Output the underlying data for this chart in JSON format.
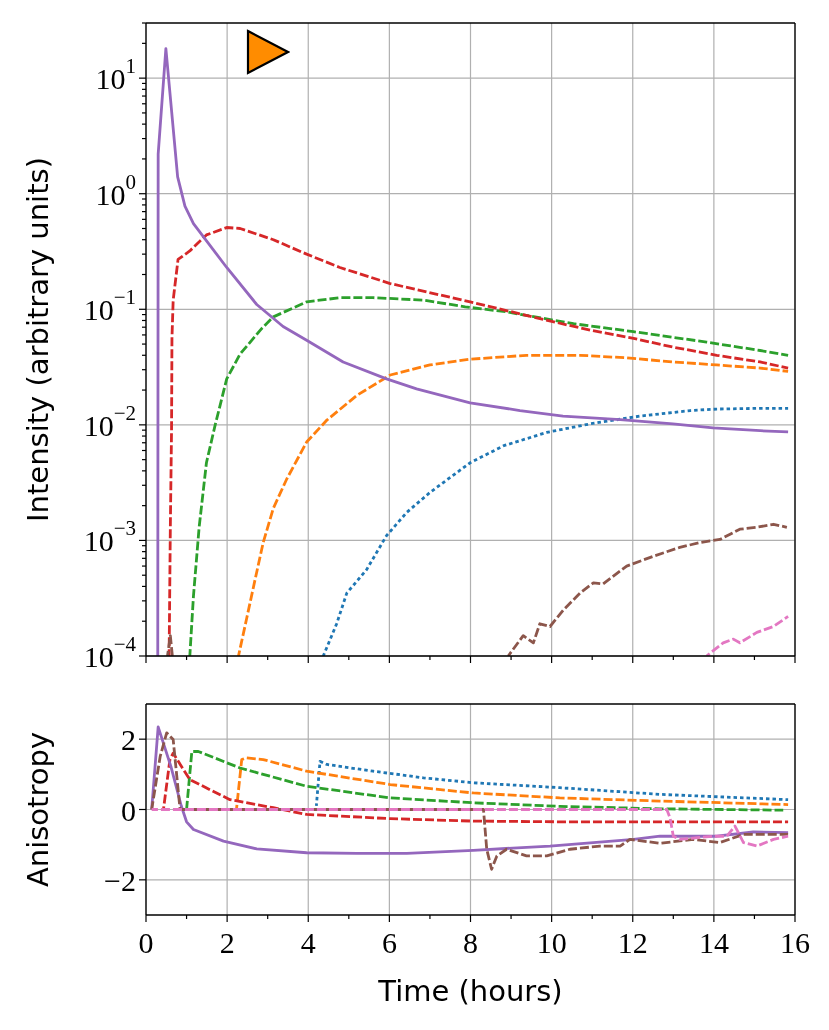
{
  "chart_data": [
    {
      "type": "line",
      "ylabel": "Intensity (arbitrary units)",
      "xlim": [
        0,
        16
      ],
      "xticks": [
        0,
        {
          "value": 1,
          "label": null
        },
        2,
        {
          "value": 3,
          "label": null
        },
        4,
        {
          "value": 5,
          "label": null
        },
        6,
        {
          "value": 7,
          "label": null
        },
        8,
        {
          "value": 9,
          "label": null
        },
        10,
        {
          "value": 11,
          "label": null
        },
        12,
        {
          "value": 13,
          "label": null
        },
        14,
        {
          "value": 15,
          "label": null
        },
        16
      ],
      "ylim": [
        0.0001,
        30
      ],
      "yticks": [
        {
          "value": 0.0001,
          "label": "10$^{−4}$"
        },
        {
          "value": 0.0002,
          "label": null
        },
        {
          "value": 0.0003,
          "label": null
        },
        {
          "value": 0.0004,
          "label": null
        },
        {
          "value": 0.0005,
          "label": null
        },
        {
          "value": 0.0006,
          "label": null
        },
        {
          "value": 0.0007,
          "label": null
        },
        {
          "value": 0.0008,
          "label": null
        },
        {
          "value": 0.0009,
          "label": null
        },
        {
          "value": 0.001,
          "label": "10$^{−3}$"
        },
        {
          "value": 0.002,
          "label": null
        },
        {
          "value": 0.003,
          "label": null
        },
        {
          "value": 0.004,
          "label": null
        },
        {
          "value": 0.005,
          "label": null
        },
        {
          "value": 0.006,
          "label": null
        },
        {
          "value": 0.007,
          "label": null
        },
        {
          "value": 0.008,
          "label": null
        },
        {
          "value": 0.009,
          "label": null
        },
        {
          "value": 0.01,
          "label": "10$^{−2}$"
        },
        {
          "value": 0.02,
          "label": null
        },
        {
          "value": 0.03,
          "label": null
        },
        {
          "value": 0.04,
          "label": null
        },
        {
          "value": 0.05,
          "label": null
        },
        {
          "value": 0.06,
          "label": null
        },
        {
          "value": 0.07,
          "label": null
        },
        {
          "value": 0.08,
          "label": null
        },
        {
          "value": 0.09,
          "label": null
        },
        {
          "value": 0.1,
          "label": "10$^{−1}$"
        },
        {
          "value": 0.2,
          "label": null
        },
        {
          "value": 0.3,
          "label": null
        },
        {
          "value": 0.4,
          "label": null
        },
        {
          "value": 0.5,
          "label": null
        },
        {
          "value": 0.6,
          "label": null
        },
        {
          "value": 0.7,
          "label": null
        },
        {
          "value": 0.8,
          "label": null
        },
        {
          "value": 0.9,
          "label": null
        },
        {
          "value": 1,
          "label": "10$^{0}$"
        },
        {
          "value": 2,
          "label": null
        },
        {
          "value": 3,
          "label": null
        },
        {
          "value": 4,
          "label": null
        },
        {
          "value": 5,
          "label": null
        },
        {
          "value": 6,
          "label": null
        },
        {
          "value": 7,
          "label": null
        },
        {
          "value": 8,
          "label": null
        },
        {
          "value": 9,
          "label": null
        },
        {
          "value": 10,
          "label": "10$^{1}$"
        },
        {
          "value": 20,
          "label": null
        },
        {
          "value": 30,
          "label": null
        }
      ],
      "log": "y",
      "grid": true,
      "tick_labels": "y",
      "series": [
        {
          "color": "#1f77b4",
          "line_style": "dotted",
          "x": [
            4.37,
            4.7,
            4.95,
            5.44,
            5.93,
            6.43,
            7.0,
            7.99,
            8.82,
            9.88,
            10.95,
            12.18,
            13.42,
            14.07,
            15.14,
            15.83
          ],
          "values": [
            0.0001,
            0.00019,
            0.00035,
            0.00056,
            0.0011,
            0.00175,
            0.0026,
            0.0047,
            0.0066,
            0.0086,
            0.0102,
            0.0119,
            0.0133,
            0.0137,
            0.0139,
            0.0139
          ]
        },
        {
          "color": "#ff7f0e",
          "line_style": "dashed",
          "x": [
            2.28,
            2.48,
            2.69,
            2.89,
            3.14,
            3.47,
            3.96,
            4.46,
            5.2,
            6.02,
            7.0,
            7.99,
            9.38,
            10.7,
            11.85,
            13.0,
            14.07,
            15.14,
            15.83
          ],
          "values": [
            0.0001,
            0.00021,
            0.00046,
            0.00096,
            0.0019,
            0.0034,
            0.0071,
            0.011,
            0.018,
            0.027,
            0.033,
            0.037,
            0.04,
            0.04,
            0.038,
            0.035,
            0.033,
            0.031,
            0.029
          ]
        },
        {
          "color": "#2ca02c",
          "line_style": "dashed",
          "x": [
            1.08,
            1.17,
            1.31,
            1.49,
            1.7,
            1.99,
            2.32,
            2.85,
            3.14,
            3.96,
            4.78,
            5.6,
            6.84,
            7.87,
            8.89,
            10.54,
            12.02,
            13.82,
            15.14,
            15.83
          ],
          "values": [
            0.0001,
            0.00033,
            0.0013,
            0.0047,
            0.0098,
            0.025,
            0.041,
            0.068,
            0.086,
            0.116,
            0.126,
            0.126,
            0.12,
            0.105,
            0.095,
            0.075,
            0.064,
            0.052,
            0.044,
            0.04
          ]
        },
        {
          "color": "#d62728",
          "line_style": "dashed",
          "x": [
            0.57,
            0.6,
            0.63,
            0.64,
            0.67,
            0.79,
            1.08,
            1.49,
            1.99,
            2.32,
            3.14,
            3.96,
            4.78,
            6.02,
            7.99,
            9.71,
            10.95,
            12.02,
            13.0,
            14.07,
            15.14,
            15.83
          ],
          "values": [
            0.0001,
            0.0013,
            0.0092,
            0.056,
            0.12,
            0.27,
            0.32,
            0.44,
            0.51,
            0.5,
            0.4,
            0.3,
            0.23,
            0.167,
            0.116,
            0.083,
            0.066,
            0.056,
            0.047,
            0.04,
            0.035,
            0.031
          ]
        },
        {
          "color": "#9467bd",
          "line_style": "solid",
          "x": [
            0.29,
            0.3,
            0.49,
            0.78,
            0.96,
            1.17,
            1.99,
            2.73,
            3.38,
            3.96,
            4.86,
            5.93,
            6.67,
            7.99,
            9.22,
            10.28,
            11.69,
            12.99,
            13.98,
            15.14,
            15.83
          ],
          "values": [
            0.0001,
            2.2,
            18,
            1.4,
            0.78,
            0.55,
            0.23,
            0.11,
            0.071,
            0.054,
            0.035,
            0.025,
            0.0205,
            0.0155,
            0.0133,
            0.0119,
            0.0111,
            0.0102,
            0.0094,
            0.0089,
            0.0087
          ]
        },
        {
          "color": "#8c564b",
          "line_style": "dashed",
          "x": [
            0.53,
            0.6,
            0.65,
            0.7,
            8.93,
            9.3,
            9.55,
            9.71,
            9.96,
            10.29,
            10.7,
            11.03,
            11.27,
            11.85,
            12.51,
            13.16,
            13.66,
            14.15,
            14.64,
            15.06,
            15.47,
            15.8
          ],
          "values": [
            0.0001,
            0.00015,
            0.0001,
            null,
            0.0001,
            0.00015,
            0.00013,
            0.00019,
            0.00018,
            0.00025,
            0.00035,
            0.00043,
            0.00042,
            0.0006,
            0.00073,
            0.00087,
            0.00096,
            0.00102,
            0.00125,
            0.0013,
            0.00138,
            0.0013
          ]
        },
        {
          "color": "#e377c2",
          "line_style": "dashed",
          "x": [
            13.82,
            14.23,
            14.48,
            14.64,
            15.06,
            15.47,
            15.83
          ],
          "values": [
            0.0001,
            0.00013,
            0.00014,
            0.00013,
            0.00016,
            0.00018,
            0.00022
          ]
        }
      ]
    },
    {
      "type": "line",
      "xlabel": "Time (hours)",
      "ylabel": "Anisotropy",
      "xlim": [
        0,
        16
      ],
      "xticks": [
        0,
        {
          "value": 1,
          "label": null
        },
        2,
        {
          "value": 3,
          "label": null
        },
        4,
        {
          "value": 5,
          "label": null
        },
        6,
        {
          "value": 7,
          "label": null
        },
        8,
        {
          "value": 9,
          "label": null
        },
        10,
        {
          "value": 11,
          "label": null
        },
        12,
        {
          "value": 13,
          "label": null
        },
        14,
        {
          "value": 15,
          "label": null
        },
        16
      ],
      "ylim": [
        -3,
        3
      ],
      "yticks": [
        {
          "value": -2,
          "label": "−2"
        },
        0,
        2
      ],
      "grid": true,
      "series": [
        {
          "color": "#1f77b4",
          "line_style": "dotted",
          "x": [
            4.2,
            4.29,
            4.46,
            5.6,
            6.84,
            8.07,
            10.2,
            12.67,
            15.83
          ],
          "values": [
            0.1,
            1.37,
            1.28,
            1.09,
            0.9,
            0.76,
            0.62,
            0.43,
            0.28
          ]
        },
        {
          "color": "#ff7f0e",
          "line_style": "dashed",
          "x": [
            2.23,
            2.36,
            2.48,
            2.89,
            3.96,
            6.02,
            8.07,
            10.2,
            12.67,
            15.83
          ],
          "values": [
            0,
            1.42,
            1.47,
            1.42,
            1.09,
            0.71,
            0.47,
            0.33,
            0.24,
            0.14
          ]
        },
        {
          "color": "#2ca02c",
          "line_style": "dashed",
          "x": [
            1.0,
            1.13,
            1.29,
            2.32,
            3.96,
            6.02,
            8.07,
            10.2,
            12.67,
            15.71
          ],
          "values": [
            0,
            1.65,
            1.65,
            1.18,
            0.66,
            0.33,
            0.19,
            0.09,
            0.02,
            -0.02
          ]
        },
        {
          "color": "#d62728",
          "line_style": "dashed",
          "x": [
            0.43,
            0.59,
            0.67,
            1.08,
            2.07,
            3.14,
            3.96,
            6.02,
            8.07,
            10.2,
            12.67,
            15.83
          ],
          "values": [
            0,
            1.42,
            1.6,
            0.85,
            0.28,
            0.05,
            -0.14,
            -0.26,
            -0.33,
            -0.35,
            -0.35,
            -0.35
          ]
        },
        {
          "color": "#9467bd",
          "line_style": "solid",
          "x": [
            0.14,
            0.3,
            0.62,
            0.87,
            1.0,
            1.17,
            1.91,
            2.73,
            3.96,
            5.2,
            6.43,
            8.07,
            9.96,
            12.02,
            12.67,
            14.07,
            14.97,
            15.83
          ],
          "values": [
            0,
            2.35,
            1.2,
            0.1,
            -0.35,
            -0.57,
            -0.9,
            -1.12,
            -1.23,
            -1.25,
            -1.25,
            -1.16,
            -1.04,
            -0.85,
            -0.76,
            -0.76,
            -0.64,
            -0.66
          ]
        },
        {
          "color": "#8c564b",
          "line_style": "dashed",
          "x": [
            0.14,
            0.35,
            0.51,
            0.67,
            0.84,
            8.32,
            8.4,
            8.52,
            8.65,
            8.89,
            9.38,
            9.88,
            10.45,
            11.19,
            11.69,
            11.93,
            12.67,
            13.49,
            14.15,
            14.73,
            15.83
          ],
          "values": [
            0,
            1.51,
            2.18,
            1.99,
            0,
            0,
            -1.13,
            -1.7,
            -1.32,
            -1.13,
            -1.32,
            -1.32,
            -1.13,
            -1.04,
            -1.04,
            -0.85,
            -0.96,
            -0.85,
            -0.94,
            -0.71,
            -0.71
          ]
        },
        {
          "color": "#e377c2",
          "line_style": "dashed",
          "x": [
            0.14,
            12.84,
            12.92,
            13.0,
            13.16,
            13.98,
            14.32,
            14.52,
            14.73,
            15.06,
            15.47,
            15.83
          ],
          "values": [
            0,
            0,
            -0.24,
            -0.76,
            -0.85,
            -0.76,
            -0.76,
            -0.47,
            -0.94,
            -1.04,
            -0.85,
            -0.76
          ]
        }
      ]
    }
  ]
}
